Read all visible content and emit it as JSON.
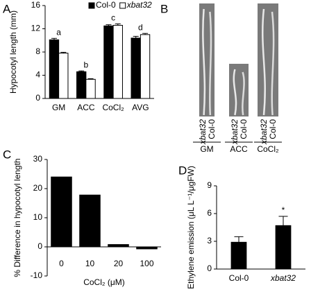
{
  "chart_data": [
    {
      "type": "bar",
      "panel": "A",
      "ylabel": "Hypocotyl length (mm)",
      "categories": [
        "GM",
        "ACC",
        "CoCl₂",
        "AVG"
      ],
      "series": [
        {
          "name": "Col-0",
          "color": "#000000",
          "values": [
            10.1,
            4.6,
            12.5,
            10.4
          ],
          "errors": [
            0.25,
            0.15,
            0.2,
            0.3
          ]
        },
        {
          "name": "xbat32",
          "color": "#ffffff",
          "values": [
            7.8,
            3.3,
            12.6,
            11.0
          ],
          "errors": [
            0.15,
            0.1,
            0.25,
            0.2
          ]
        }
      ],
      "annotations": [
        {
          "text": "a",
          "index": 0
        },
        {
          "text": "b",
          "index": 1
        },
        {
          "text": "c",
          "index": 2
        },
        {
          "text": "d",
          "index": 3
        }
      ],
      "ylim": [
        0,
        16
      ],
      "yticks": [
        0,
        4,
        8,
        12,
        16
      ],
      "legend": "top-right"
    },
    {
      "type": "bar",
      "panel": "C",
      "ylabel": "% Difference in hypocotyl length",
      "xlabel": "CoCl₂ (μM)",
      "categories": [
        "0",
        "10",
        "20",
        "100"
      ],
      "series": [
        {
          "name": "Difference",
          "color": "#000000",
          "values": [
            24,
            17.8,
            0.8,
            -0.7
          ]
        }
      ],
      "ylim": [
        -10,
        30
      ],
      "yticks": [
        -10,
        0,
        10,
        20,
        30
      ]
    },
    {
      "type": "bar",
      "panel": "D",
      "ylabel": "Ethylene emission (μL L⁻¹/μgFW)",
      "categories": [
        "Col-0",
        "xbat32"
      ],
      "series": [
        {
          "name": "Ethylene",
          "color": "#000000",
          "values": [
            2.9,
            4.7
          ],
          "errors": [
            0.6,
            1.0
          ]
        }
      ],
      "annotations": [
        {
          "text": "*",
          "index": 1
        }
      ],
      "ylim": [
        0,
        9
      ],
      "yticks": [
        0,
        3,
        6,
        9
      ]
    }
  ],
  "panel_b": {
    "panel": "B",
    "groups": [
      {
        "label": "GM",
        "lanes": [
          "xbat32",
          "Col-0"
        ]
      },
      {
        "label": "ACC",
        "lanes": [
          "xbat32",
          "Col-0"
        ]
      },
      {
        "label": "CoCl₂",
        "lanes": [
          "xbat32",
          "Col-0"
        ]
      }
    ]
  }
}
